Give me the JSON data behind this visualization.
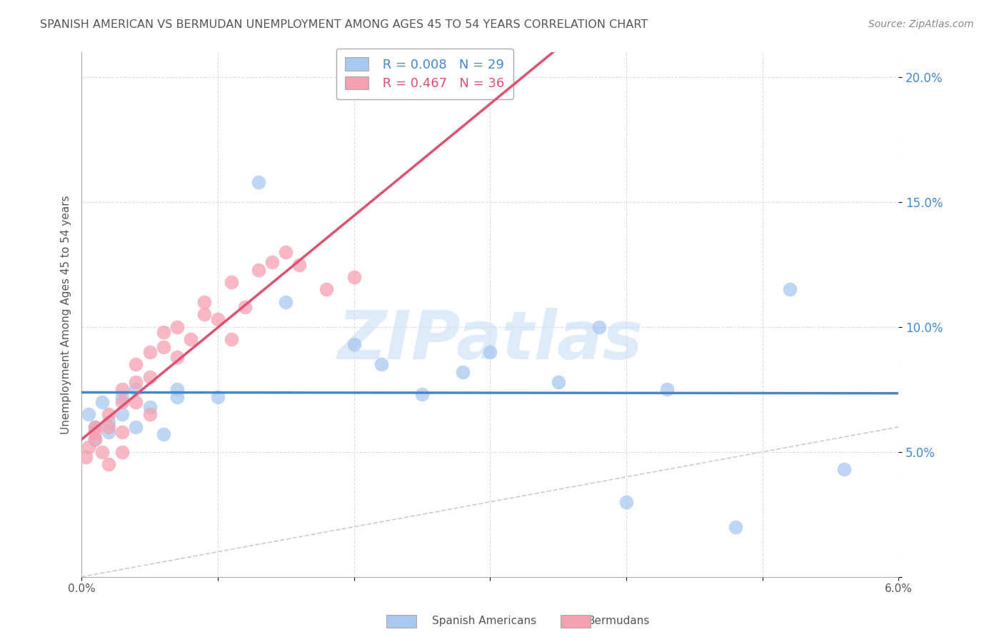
{
  "title": "SPANISH AMERICAN VS BERMUDAN UNEMPLOYMENT AMONG AGES 45 TO 54 YEARS CORRELATION CHART",
  "source": "Source: ZipAtlas.com",
  "ylabel": "Unemployment Among Ages 45 to 54 years",
  "xlim": [
    0.0,
    0.06
  ],
  "ylim": [
    0.0,
    0.21
  ],
  "xticks": [
    0.0,
    0.01,
    0.02,
    0.03,
    0.04,
    0.05,
    0.06
  ],
  "xticklabels": [
    "0.0%",
    "",
    "",
    "",
    "",
    "",
    "6.0%"
  ],
  "yticks": [
    0.0,
    0.05,
    0.1,
    0.15,
    0.2
  ],
  "yticklabels": [
    "",
    "5.0%",
    "10.0%",
    "15.0%",
    "20.0%"
  ],
  "legend_r1": "R = 0.008",
  "legend_n1": "N = 29",
  "legend_r2": "R = 0.467",
  "legend_n2": "N = 36",
  "spanish_color": "#a8c8f0",
  "bermudan_color": "#f5a0b0",
  "spanish_line_color": "#4488cc",
  "bermudan_line_color": "#e05070",
  "diag_line_color": "#cccccc",
  "background_color": "#ffffff",
  "grid_color": "#dddddd",
  "watermark": "ZIPatlas",
  "watermark_color": "#c8dff5",
  "spanish_x": [
    0.0005,
    0.001,
    0.001,
    0.0015,
    0.002,
    0.002,
    0.003,
    0.003,
    0.004,
    0.004,
    0.005,
    0.006,
    0.007,
    0.007,
    0.01,
    0.013,
    0.015,
    0.02,
    0.022,
    0.025,
    0.028,
    0.03,
    0.035,
    0.038,
    0.04,
    0.043,
    0.048,
    0.052,
    0.056
  ],
  "spanish_y": [
    0.065,
    0.06,
    0.055,
    0.07,
    0.062,
    0.058,
    0.072,
    0.065,
    0.075,
    0.06,
    0.068,
    0.057,
    0.075,
    0.072,
    0.072,
    0.158,
    0.11,
    0.093,
    0.085,
    0.073,
    0.082,
    0.09,
    0.078,
    0.1,
    0.03,
    0.075,
    0.02,
    0.115,
    0.043
  ],
  "bermudan_x": [
    0.0003,
    0.0005,
    0.001,
    0.001,
    0.001,
    0.0015,
    0.002,
    0.002,
    0.002,
    0.003,
    0.003,
    0.003,
    0.003,
    0.004,
    0.004,
    0.004,
    0.005,
    0.005,
    0.005,
    0.006,
    0.006,
    0.007,
    0.007,
    0.008,
    0.009,
    0.009,
    0.01,
    0.011,
    0.011,
    0.012,
    0.013,
    0.014,
    0.015,
    0.016,
    0.018,
    0.02
  ],
  "bermudan_y": [
    0.048,
    0.052,
    0.055,
    0.058,
    0.06,
    0.05,
    0.06,
    0.065,
    0.045,
    0.058,
    0.07,
    0.075,
    0.05,
    0.078,
    0.085,
    0.07,
    0.09,
    0.08,
    0.065,
    0.098,
    0.092,
    0.1,
    0.088,
    0.095,
    0.105,
    0.11,
    0.103,
    0.095,
    0.118,
    0.108,
    0.123,
    0.126,
    0.13,
    0.125,
    0.115,
    0.12
  ]
}
